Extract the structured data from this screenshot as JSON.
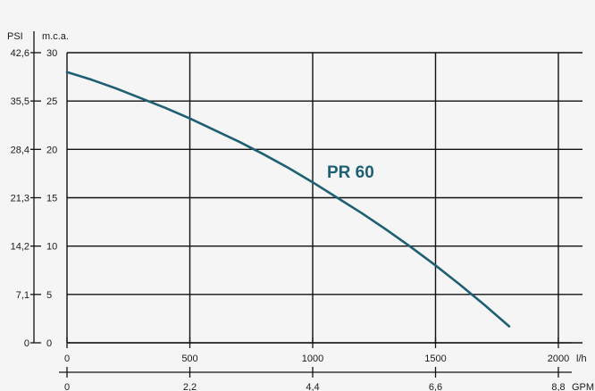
{
  "chart_data": {
    "type": "line",
    "series": [
      {
        "name": "PR 60",
        "x": [
          0,
          100,
          200,
          300,
          400,
          500,
          600,
          700,
          800,
          900,
          1000,
          1100,
          1200,
          1300,
          1400,
          1500,
          1600,
          1700,
          1800
        ],
        "y": [
          28.0,
          27.2,
          26.3,
          25.3,
          24.3,
          23.2,
          22.0,
          20.8,
          19.5,
          18.1,
          16.6,
          15.0,
          13.4,
          11.7,
          9.9,
          8.0,
          6.0,
          3.9,
          1.7
        ]
      }
    ],
    "xlabel": "l/h",
    "ylabel": "m.c.a.",
    "xlim": [
      0,
      2000
    ],
    "ylim": [
      0,
      30
    ],
    "x_ticks": [
      0,
      500,
      1000,
      1500,
      2000
    ],
    "x_tick_labels": [
      "0",
      "500",
      "1000",
      "1500",
      "2000"
    ],
    "y_ticks": [
      0,
      5,
      10,
      15,
      20,
      25,
      30
    ],
    "y_tick_labels": [
      "0",
      "5",
      "10",
      "15",
      "20",
      "25",
      "30"
    ],
    "secondary_y": {
      "label": "PSI",
      "tick_labels": [
        "0",
        "7,1",
        "14,2",
        "21,3",
        "28,4",
        "35,5",
        "42,6"
      ]
    },
    "secondary_x": {
      "label": "GPM",
      "tick_labels": [
        "0",
        "2,2",
        "4,4",
        "6,6",
        "8,8"
      ]
    },
    "grid": true,
    "line_color": "#1f5f73"
  }
}
